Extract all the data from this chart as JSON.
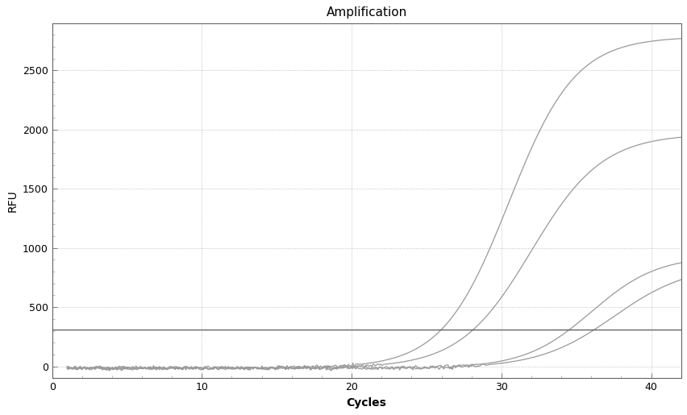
{
  "title": "Amplification",
  "xlabel": "Cycles",
  "ylabel": "RFU",
  "xlim": [
    0,
    42
  ],
  "ylim": [
    -100,
    2900
  ],
  "xticks": [
    0,
    10,
    20,
    30,
    40
  ],
  "yticks": [
    0,
    500,
    1000,
    1500,
    2000,
    2500
  ],
  "threshold_y": 310,
  "threshold_color": "#555555",
  "background_color": "#ffffff",
  "grid_color": "#aaaaaa",
  "curve_color": "#999999",
  "curves": [
    {
      "L": 2800,
      "k": 0.45,
      "x0": 30.5
    },
    {
      "L": 1980,
      "k": 0.42,
      "x0": 32.0
    },
    {
      "L": 950,
      "k": 0.45,
      "x0": 36.0
    },
    {
      "L": 870,
      "k": 0.4,
      "x0": 37.5
    }
  ],
  "title_fontsize": 11,
  "label_fontsize": 10,
  "tick_fontsize": 9,
  "xlabel_bold": true,
  "ylabel_bold": false
}
